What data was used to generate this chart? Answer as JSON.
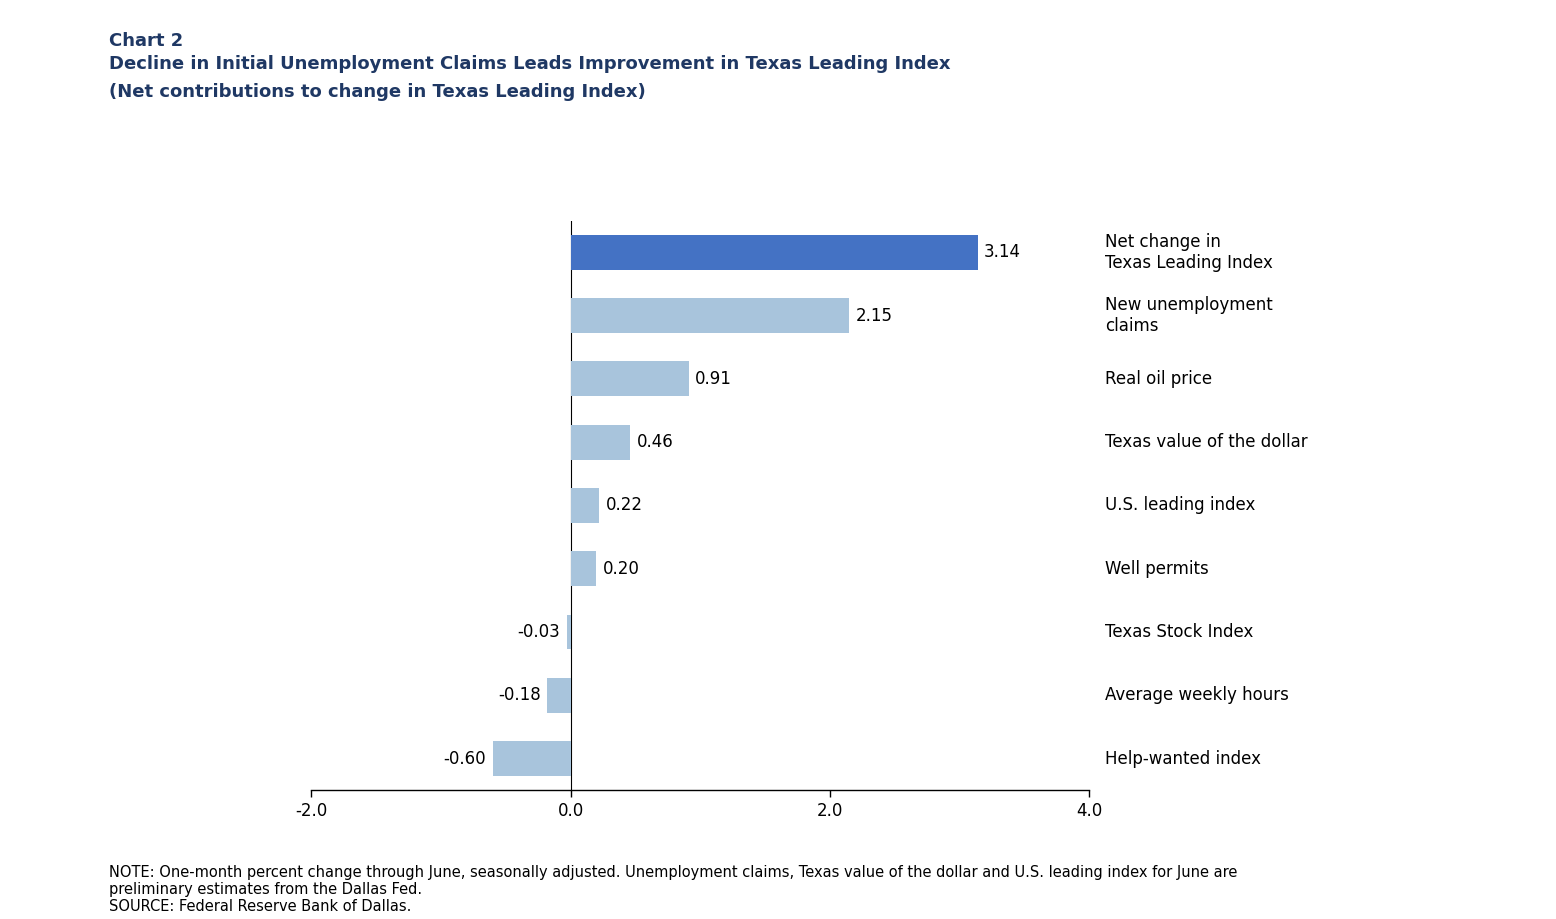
{
  "chart_label": "Chart 2",
  "title_line1": "Decline in Initial Unemployment Claims Leads Improvement in Texas Leading Index",
  "title_line2": "(Net contributions to change in Texas Leading Index)",
  "categories": [
    "Help-wanted index",
    "Average weekly hours",
    "Texas Stock Index",
    "Well permits",
    "U.S. leading index",
    "Texas value of the dollar",
    "Real oil price",
    "New unemployment\nclaims",
    "Net change in\nTexas Leading Index"
  ],
  "values": [
    -0.6,
    -0.18,
    -0.03,
    0.2,
    0.22,
    0.46,
    0.91,
    2.15,
    3.14
  ],
  "bar_colors": [
    "#a8c4dc",
    "#a8c4dc",
    "#a8c4dc",
    "#a8c4dc",
    "#a8c4dc",
    "#a8c4dc",
    "#a8c4dc",
    "#a8c4dc",
    "#4472c4"
  ],
  "right_labels": [
    "Help-wanted index",
    "Average weekly hours",
    "Texas Stock Index",
    "Well permits",
    "U.S. leading index",
    "Texas value of the dollar",
    "Real oil price",
    "New unemployment\nclaims",
    "Net change in\nTexas Leading Index"
  ],
  "value_labels": [
    "-0.60",
    "-0.18",
    "-0.03",
    "0.20",
    "0.22",
    "0.46",
    "0.91",
    "2.15",
    "3.14"
  ],
  "xlim": [
    -2.0,
    4.0
  ],
  "xticks": [
    -2.0,
    0.0,
    2.0,
    4.0
  ],
  "xtick_labels": [
    "-2.0",
    "0.0",
    "2.0",
    "4.0"
  ],
  "note": "NOTE: One-month percent change through June, seasonally adjusted. Unemployment claims, Texas value of the dollar and U.S. leading index for June are\npreliminary estimates from the Dallas Fed.\nSOURCE: Federal Reserve Bank of Dallas.",
  "title_color": "#1f3864",
  "bar_color_dark": "#4472c4",
  "bar_color_light": "#a8c4dc",
  "background_color": "#ffffff"
}
